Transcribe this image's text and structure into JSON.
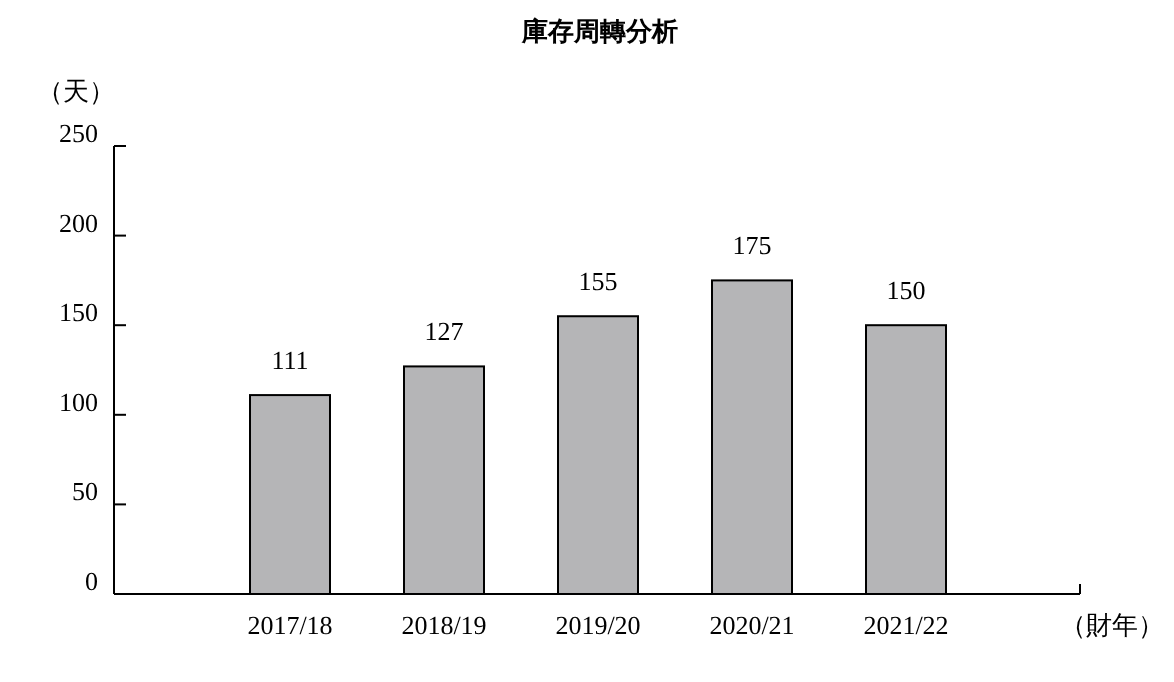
{
  "chart_data": {
    "type": "bar",
    "title": "庫存周轉分析",
    "ylabel": "（天）",
    "xlabel": "（財年）",
    "categories": [
      "2017/18",
      "2018/19",
      "2019/20",
      "2020/21",
      "2021/22"
    ],
    "values": [
      111,
      127,
      155,
      175,
      150
    ],
    "color": "#b5b5b7",
    "data_labels": true,
    "ylim": [
      0,
      250
    ],
    "yticks": [
      0,
      50,
      100,
      150,
      200,
      250
    ]
  }
}
